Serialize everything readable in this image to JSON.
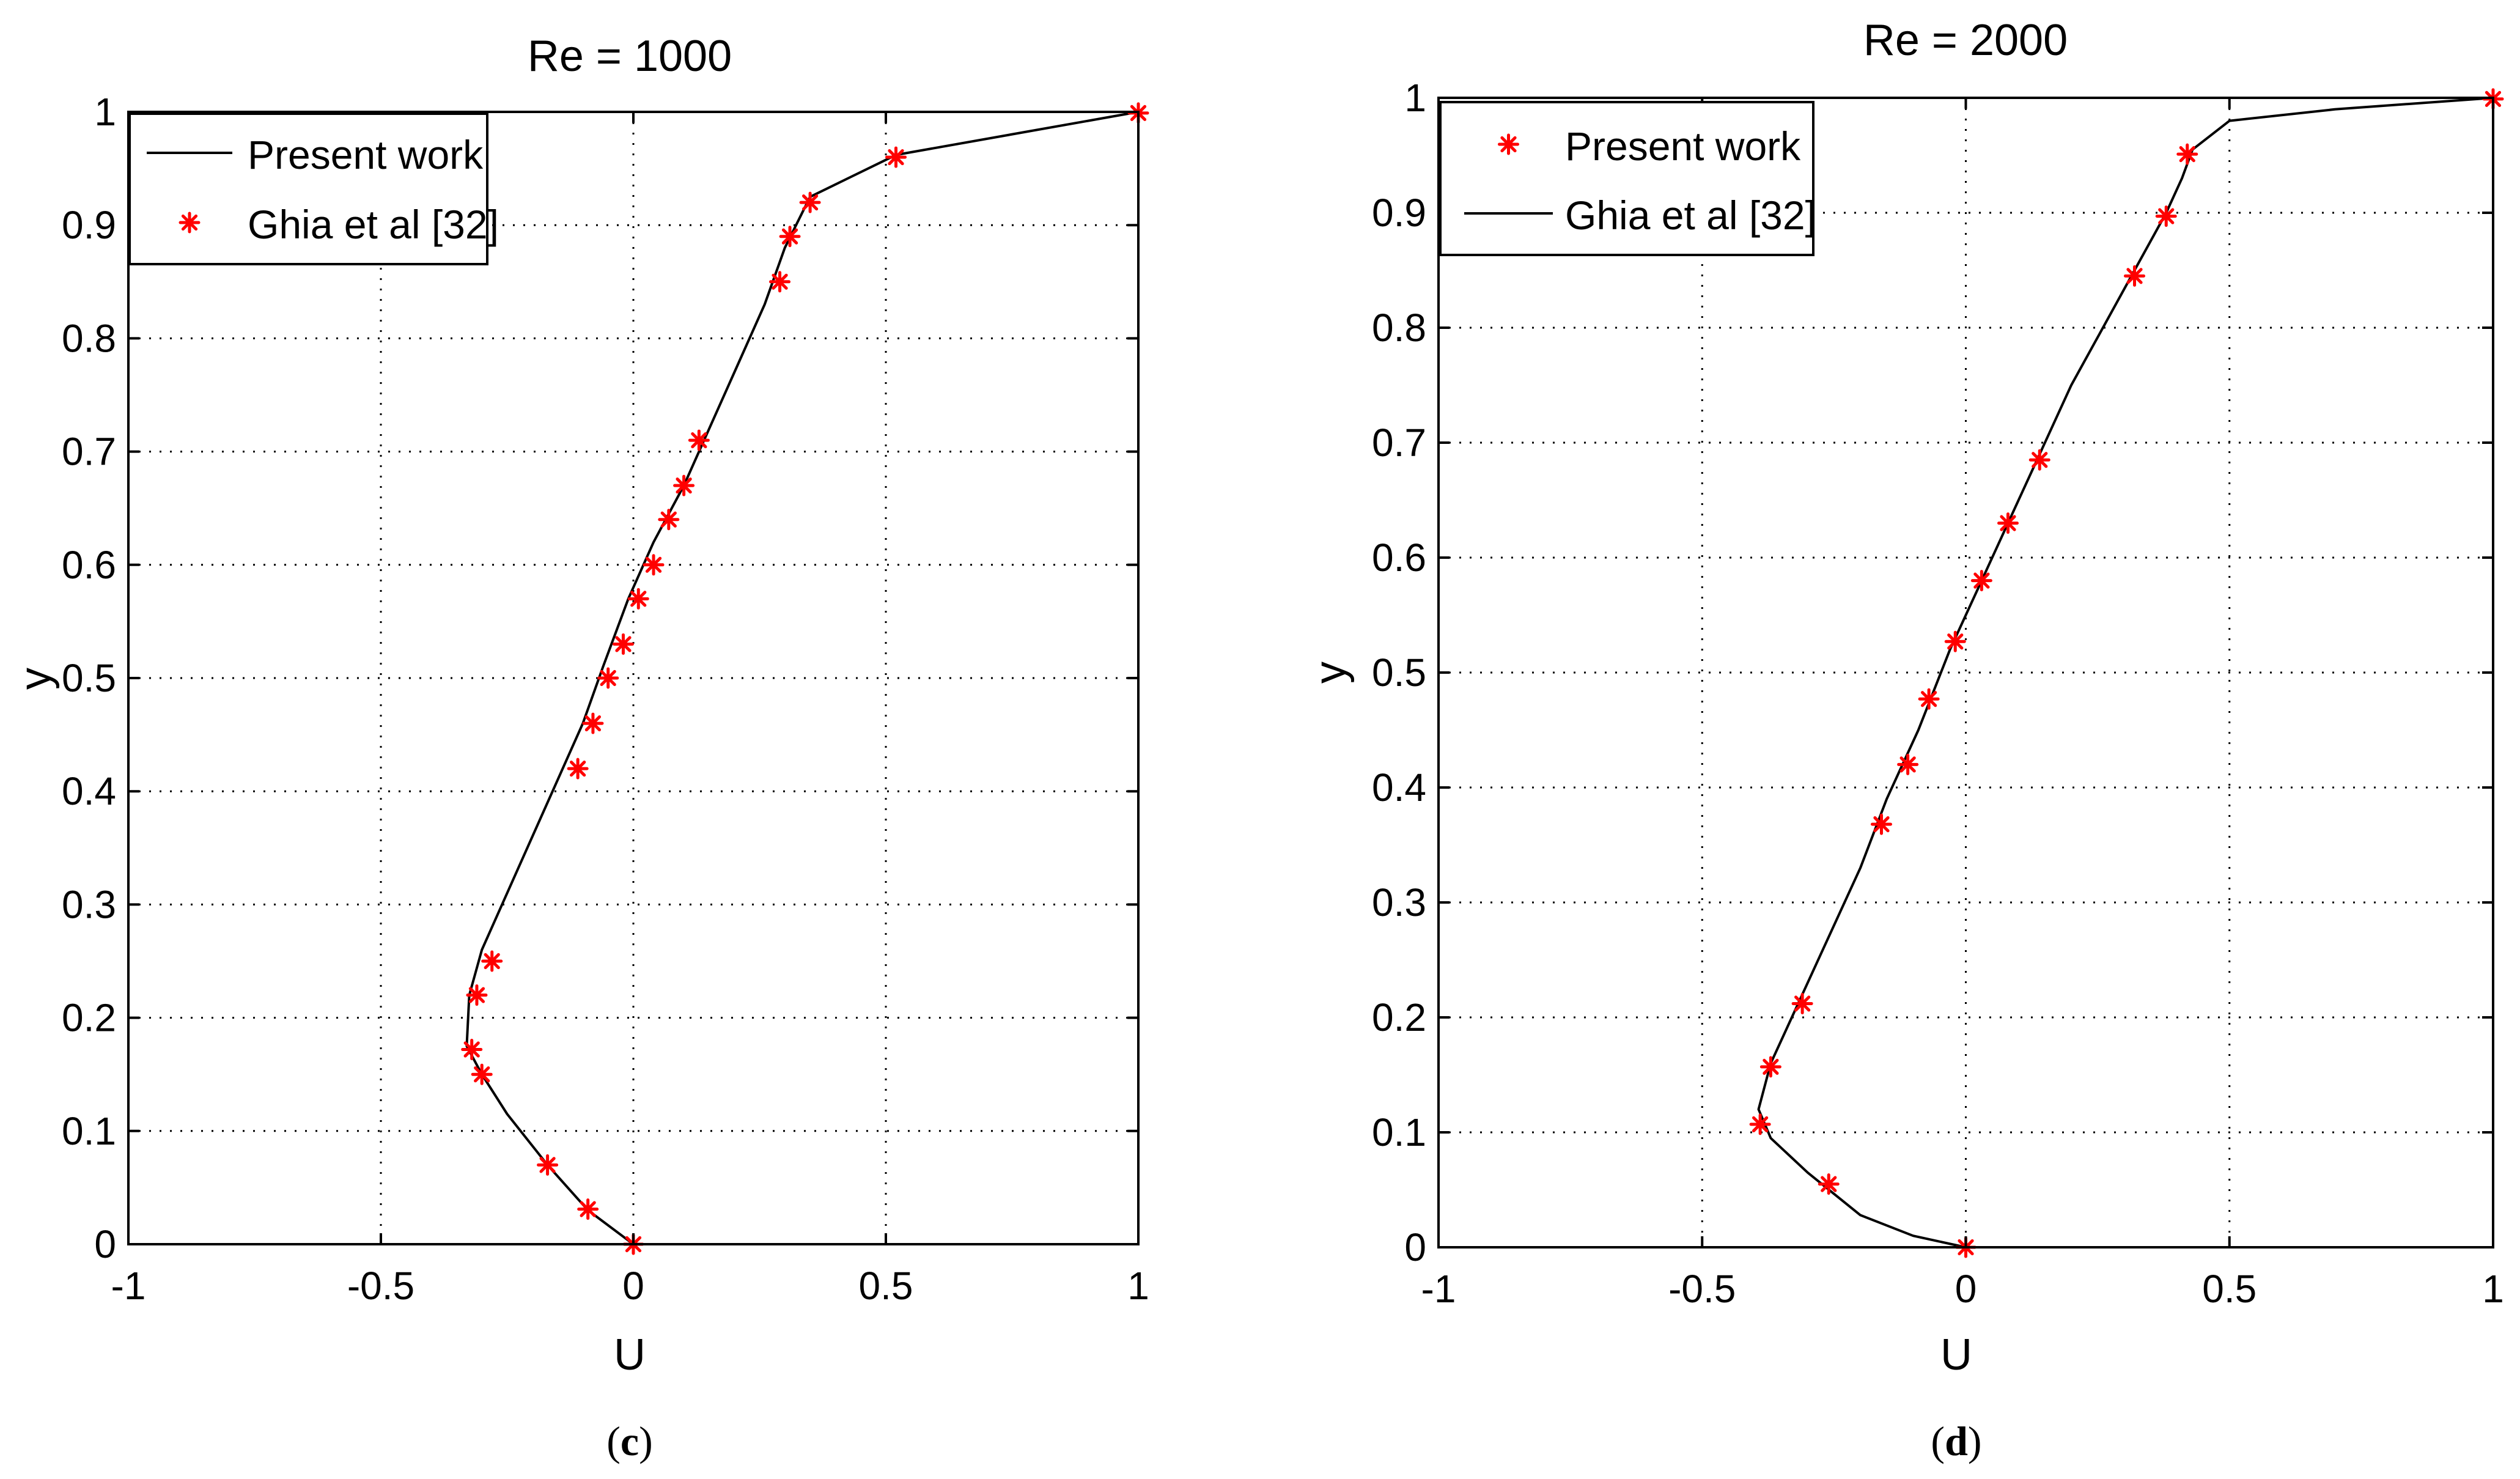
{
  "chart_data": [
    {
      "type": "line",
      "panel_label": "c",
      "title": "Re = 1000",
      "xlabel": "U",
      "ylabel": "y",
      "xlim": [
        -1,
        1
      ],
      "ylim": [
        0,
        1
      ],
      "xticks": [
        "-1",
        "-0.5",
        "0",
        "0.5",
        "1"
      ],
      "yticks": [
        "0",
        "0.1",
        "0.2",
        "0.3",
        "0.4",
        "0.5",
        "0.6",
        "0.7",
        "0.8",
        "0.9",
        "1"
      ],
      "xtick_values": [
        -1,
        -0.5,
        0,
        0.5,
        1
      ],
      "ytick_values": [
        0,
        0.1,
        0.2,
        0.3,
        0.4,
        0.5,
        0.6,
        0.7,
        0.8,
        0.9,
        1
      ],
      "grid": true,
      "legend": {
        "placement": "top-left",
        "order": [
          "line",
          "markers"
        ]
      },
      "series": [
        {
          "name": "Present work",
          "style": "line",
          "color": "#000000",
          "points": [
            [
              0,
              0
            ],
            [
              -0.09,
              0.03
            ],
            [
              -0.17,
              0.07
            ],
            [
              -0.25,
              0.115
            ],
            [
              -0.3,
              0.15
            ],
            [
              -0.33,
              0.175
            ],
            [
              -0.325,
              0.22
            ],
            [
              -0.3,
              0.26
            ],
            [
              -0.23,
              0.33
            ],
            [
              -0.15,
              0.41
            ],
            [
              -0.1,
              0.46
            ],
            [
              -0.06,
              0.51
            ],
            [
              -0.01,
              0.57
            ],
            [
              0.04,
              0.62
            ],
            [
              0.1,
              0.67
            ],
            [
              0.14,
              0.71
            ],
            [
              0.2,
              0.77
            ],
            [
              0.26,
              0.83
            ],
            [
              0.3,
              0.88
            ],
            [
              0.35,
              0.925
            ],
            [
              0.52,
              0.962
            ],
            [
              1,
              1
            ]
          ]
        },
        {
          "name": "Ghia et al [32]",
          "style": "markers",
          "color": "#ff0000",
          "points": [
            [
              0,
              0
            ],
            [
              -0.09,
              0.031
            ],
            [
              -0.17,
              0.07
            ],
            [
              -0.3,
              0.15
            ],
            [
              -0.32,
              0.172
            ],
            [
              -0.31,
              0.22
            ],
            [
              -0.28,
              0.25
            ],
            [
              -0.11,
              0.42
            ],
            [
              -0.08,
              0.46
            ],
            [
              -0.05,
              0.5
            ],
            [
              -0.02,
              0.53
            ],
            [
              0.01,
              0.57
            ],
            [
              0.04,
              0.6
            ],
            [
              0.07,
              0.64
            ],
            [
              0.1,
              0.67
            ],
            [
              0.13,
              0.71
            ],
            [
              0.29,
              0.85
            ],
            [
              0.31,
              0.89
            ],
            [
              0.35,
              0.92
            ],
            [
              0.52,
              0.96
            ],
            [
              1,
              0.999
            ]
          ]
        }
      ]
    },
    {
      "type": "line",
      "panel_label": "d",
      "title": "Re = 2000",
      "xlabel": "U",
      "ylabel": "y",
      "xlim": [
        -1,
        1
      ],
      "ylim": [
        0,
        1
      ],
      "xticks": [
        "-1",
        "-0.5",
        "0",
        "0.5",
        "1"
      ],
      "yticks": [
        "0",
        "0.1",
        "0.2",
        "0.3",
        "0.4",
        "0.5",
        "0.6",
        "0.7",
        "0.8",
        "0.9",
        "1"
      ],
      "xtick_values": [
        -1,
        -0.5,
        0,
        0.5,
        1
      ],
      "ytick_values": [
        0,
        0.1,
        0.2,
        0.3,
        0.4,
        0.5,
        0.6,
        0.7,
        0.8,
        0.9,
        1
      ],
      "grid": true,
      "legend": {
        "placement": "top-left",
        "order": [
          "markers",
          "line"
        ]
      },
      "series": [
        {
          "name": "Present work",
          "style": "markers",
          "color": "#ff0000",
          "points": [
            [
              0,
              0
            ],
            [
              -0.26,
              0.055
            ],
            [
              -0.39,
              0.107
            ],
            [
              -0.37,
              0.157
            ],
            [
              -0.31,
              0.212
            ],
            [
              -0.16,
              0.368
            ],
            [
              -0.11,
              0.42
            ],
            [
              -0.07,
              0.477
            ],
            [
              -0.02,
              0.527
            ],
            [
              0.03,
              0.58
            ],
            [
              0.08,
              0.63
            ],
            [
              0.14,
              0.685
            ],
            [
              0.32,
              0.845
            ],
            [
              0.38,
              0.897
            ],
            [
              0.42,
              0.951
            ],
            [
              1,
              0.999
            ]
          ]
        },
        {
          "name": "Ghia et al [32]",
          "style": "line",
          "color": "#000000",
          "points": [
            [
              0,
              0
            ],
            [
              -0.1,
              0.01
            ],
            [
              -0.2,
              0.028
            ],
            [
              -0.3,
              0.065
            ],
            [
              -0.37,
              0.095
            ],
            [
              -0.393,
              0.12
            ],
            [
              -0.37,
              0.16
            ],
            [
              -0.33,
              0.2
            ],
            [
              -0.27,
              0.26
            ],
            [
              -0.2,
              0.33
            ],
            [
              -0.15,
              0.39
            ],
            [
              -0.09,
              0.45
            ],
            [
              -0.03,
              0.52
            ],
            [
              0.02,
              0.57
            ],
            [
              0.08,
              0.63
            ],
            [
              0.14,
              0.69
            ],
            [
              0.2,
              0.75
            ],
            [
              0.26,
              0.8
            ],
            [
              0.32,
              0.85
            ],
            [
              0.38,
              0.9
            ],
            [
              0.41,
              0.93
            ],
            [
              0.43,
              0.955
            ],
            [
              0.5,
              0.98
            ],
            [
              0.7,
              0.99
            ],
            [
              1,
              1
            ]
          ]
        }
      ]
    }
  ]
}
